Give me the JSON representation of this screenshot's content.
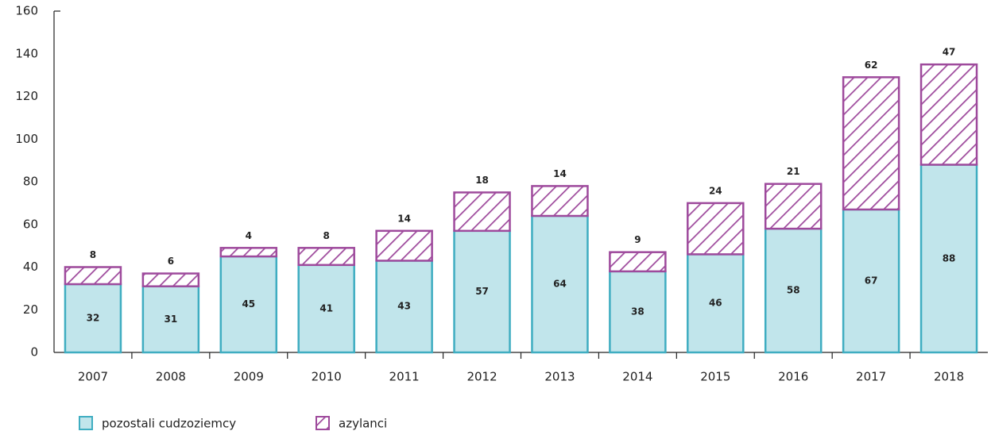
{
  "chart_data": {
    "type": "stacked_bar",
    "categories": [
      "2007",
      "2008",
      "2009",
      "2010",
      "2011",
      "2012",
      "2013",
      "2014",
      "2015",
      "2016",
      "2017",
      "2018"
    ],
    "series": [
      {
        "name": "pozostali cudzoziemcy",
        "color": "#3fadc1",
        "values": [
          32,
          31,
          45,
          41,
          43,
          57,
          64,
          38,
          46,
          58,
          67,
          88
        ]
      },
      {
        "name": "azylanci",
        "color": "#9e4a9c",
        "hatch": true,
        "values": [
          8,
          6,
          4,
          8,
          14,
          18,
          14,
          9,
          24,
          21,
          62,
          47
        ]
      }
    ],
    "ylim": [
      0,
      160
    ],
    "yticks": [
      0,
      20,
      40,
      60,
      80,
      100,
      120,
      140,
      160
    ],
    "grid": false,
    "legend": "bottom-left"
  }
}
